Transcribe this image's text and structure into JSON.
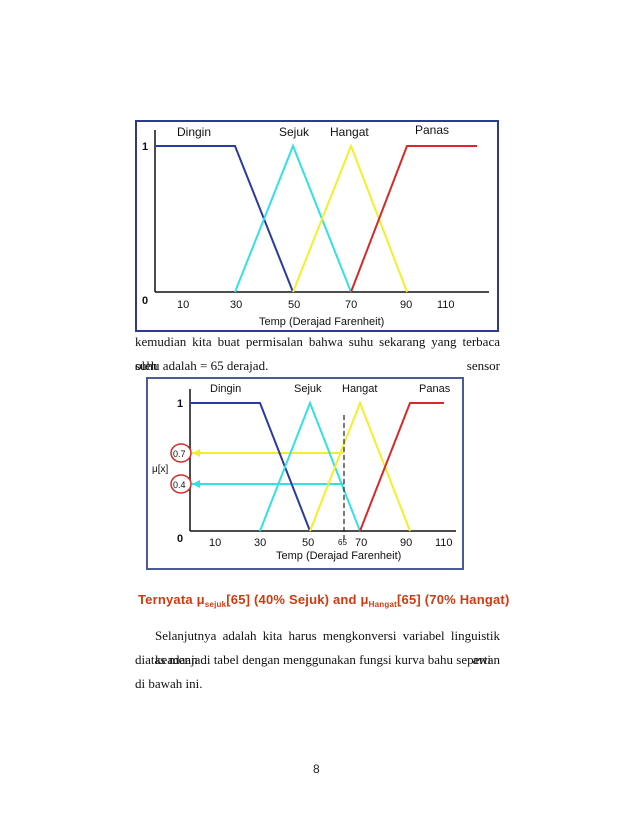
{
  "figure1": {
    "labels": {
      "dingin": "Dingin",
      "sejuk": "Sejuk",
      "hangat": "Hangat",
      "panas": "Panas"
    },
    "y_ticks": {
      "one": "1",
      "zero": "0"
    },
    "x_ticks": [
      "10",
      "30",
      "50",
      "70",
      "90",
      "110"
    ],
    "xlabel": "Temp (Derajad Farenheit)"
  },
  "paragraph1": {
    "line1": "kemudian kita buat permisalan bahwa suhu sekarang yang terbaca oleh sensor",
    "line2": "suhu adalah = 65 derajad."
  },
  "figure2": {
    "labels": {
      "dingin": "Dingin",
      "sejuk": "Sejuk",
      "hangat": "Hangat",
      "panas": "Panas"
    },
    "y_ticks": {
      "one": "1",
      "zero": "0"
    },
    "x_ticks": [
      "10",
      "30",
      "50",
      "70",
      "90",
      "110"
    ],
    "marker_x": "65",
    "ylabel": "μ[x]",
    "mu_values": {
      "hangat": "0.7",
      "sejuk": "0.4"
    },
    "xlabel": "Temp (Derajad Farenheit)"
  },
  "conclusion": {
    "prefix": "Ternyata μ",
    "sub1": "sejuk",
    "part2": "[65] (40% Sejuk) and μ",
    "sub2": "Hangat",
    "part3": "[65] (70% Hangat)"
  },
  "paragraph2": {
    "line1": "Selanjutnya adalah kita harus mengkonversi variabel linguistik keadaan awan",
    "line2": "diatas menjadi tabel dengan menggunakan fungsi kurva bahu seperti di bawah ini."
  },
  "page_number": "8",
  "colors": {
    "dingin": "#2b3aa0",
    "sejuk": "#33e0e6",
    "hangat": "#f5ef2a",
    "panas": "#d42a2a",
    "frame": "#2d3b8c",
    "conclusion": "#d03a10",
    "marker": "#222222",
    "mu_circle": "#d42a2a"
  }
}
